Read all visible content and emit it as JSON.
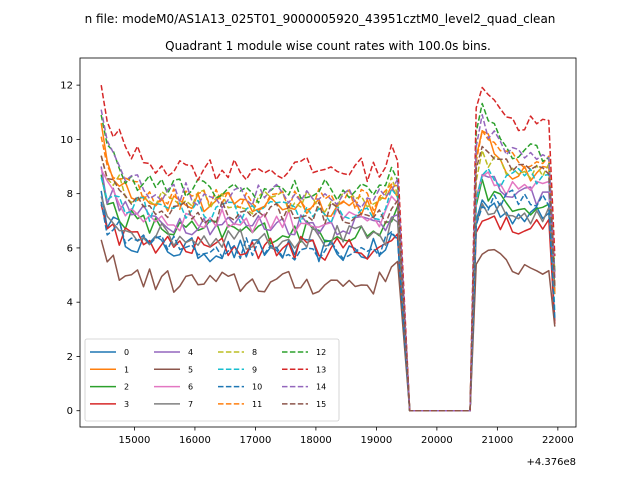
{
  "figure": {
    "suptitle": "n file: modeM0/AS1A13_025T01_9000005920_43951cztM0_level2_quad_clean",
    "offset_label": "+4.376e8"
  },
  "chart_data": {
    "type": "line",
    "title": "Quadrant 1 module wise count rates with 100.0s bins.",
    "xlabel": "",
    "ylabel": "",
    "xlim": [
      14100,
      22300
    ],
    "ylim": [
      -0.6,
      13.0
    ],
    "x_ticks": [
      15000,
      16000,
      17000,
      18000,
      19000,
      20000,
      21000,
      22000
    ],
    "x_tick_labels": [
      "15000",
      "16000",
      "17000",
      "18000",
      "19000",
      "20000",
      "21000",
      "22000"
    ],
    "y_ticks": [
      0,
      2,
      4,
      6,
      8,
      10,
      12
    ],
    "y_tick_labels": [
      "0",
      "2",
      "4",
      "6",
      "8",
      "10",
      "12"
    ],
    "grid": false,
    "legend_position": "lower-left",
    "legend_columns": 4,
    "segments": [
      {
        "x_start": 14450,
        "x_end": 19350,
        "step": 100
      },
      {
        "x": [
          19550,
          19650,
          19750,
          19850,
          19950,
          20050,
          20150,
          20250,
          20350,
          20450,
          20550
        ]
      },
      {
        "x_start": 20650,
        "x_end": 21950,
        "step": 100
      }
    ],
    "series": [
      {
        "name": "0",
        "color": "#1f77b4",
        "dash": "solid",
        "level": 5.9,
        "post_level": 7.2,
        "start": 8.1,
        "post_start": 7.8,
        "end_value": 3.3
      },
      {
        "name": "1",
        "color": "#ff7f0e",
        "dash": "solid",
        "level": 7.6,
        "post_level": 8.8,
        "start": 10.6,
        "post_start": 10.4,
        "end_value": 4.3
      },
      {
        "name": "2",
        "color": "#2ca02c",
        "dash": "solid",
        "level": 6.6,
        "post_level": 7.4,
        "start": 8.7,
        "post_start": 8.4,
        "end_value": 4.6
      },
      {
        "name": "3",
        "color": "#d62728",
        "dash": "solid",
        "level": 6.0,
        "post_level": 6.8,
        "start": 7.6,
        "post_start": 7.3,
        "end_value": 3.2
      },
      {
        "name": "4",
        "color": "#9467bd",
        "dash": "solid",
        "level": 6.9,
        "post_level": 7.9,
        "start": 9.0,
        "post_start": 8.7,
        "end_value": 4.9
      },
      {
        "name": "5",
        "color": "#8c564b",
        "dash": "solid",
        "level": 4.7,
        "post_level": 5.3,
        "start": 6.3,
        "post_start": 6.0,
        "end_value": 3.1
      },
      {
        "name": "6",
        "color": "#e377c2",
        "dash": "solid",
        "level": 7.0,
        "post_level": 8.2,
        "start": 8.9,
        "post_start": 8.6,
        "end_value": 5.0
      },
      {
        "name": "7",
        "color": "#7f7f7f",
        "dash": "solid",
        "level": 6.4,
        "post_level": 7.2,
        "start": 7.9,
        "post_start": 7.6,
        "end_value": 4.4
      },
      {
        "name": "8",
        "color": "#bcbd22",
        "dash": "dashed",
        "level": 7.7,
        "post_level": 8.8,
        "start": 9.4,
        "post_start": 9.4,
        "end_value": 5.1
      },
      {
        "name": "9",
        "color": "#17becf",
        "dash": "dashed",
        "level": 7.3,
        "post_level": 8.6,
        "start": 8.6,
        "post_start": 8.6,
        "end_value": 3.6
      },
      {
        "name": "10",
        "color": "#1f77b4",
        "dash": "dashed",
        "level": 6.0,
        "post_level": 7.8,
        "start": 7.7,
        "post_start": 7.6,
        "end_value": 3.4
      },
      {
        "name": "11",
        "color": "#ff7f0e",
        "dash": "dashed",
        "level": 7.8,
        "post_level": 9.2,
        "start": 10.1,
        "post_start": 10.2,
        "end_value": 4.4
      },
      {
        "name": "12",
        "color": "#2ca02c",
        "dash": "dashed",
        "level": 8.1,
        "post_level": 9.5,
        "start": 10.9,
        "post_start": 11.4,
        "end_value": 5.1
      },
      {
        "name": "13",
        "color": "#d62728",
        "dash": "dashed",
        "level": 8.9,
        "post_level": 10.6,
        "start": 12.0,
        "post_start": 12.4,
        "end_value": 5.7
      },
      {
        "name": "14",
        "color": "#9467bd",
        "dash": "dashed",
        "level": 7.9,
        "post_level": 9.5,
        "start": 11.1,
        "post_start": 10.8,
        "end_value": 4.9
      },
      {
        "name": "15",
        "color": "#8c564b",
        "dash": "dashed",
        "level": 7.3,
        "post_level": 8.8,
        "start": 9.4,
        "post_start": 9.9,
        "end_value": 4.6
      }
    ]
  }
}
